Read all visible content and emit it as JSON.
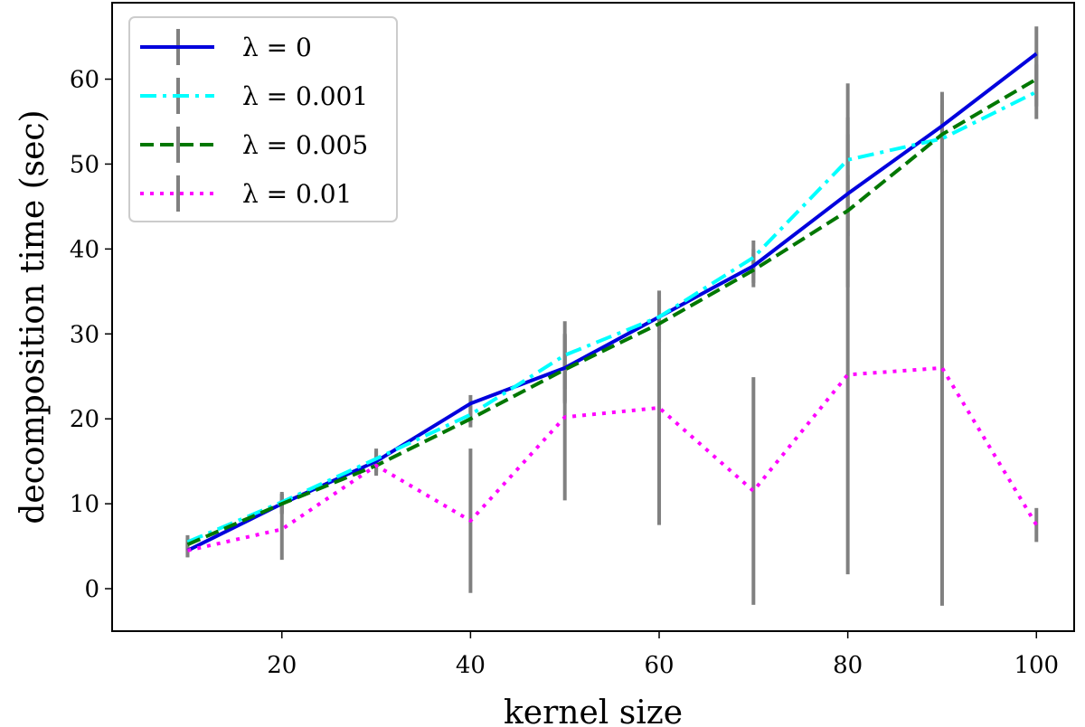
{
  "chart_data": {
    "type": "line",
    "xlabel": "kernel size",
    "ylabel": "decomposition time (sec)",
    "xlim": [
      2,
      104
    ],
    "ylim": [
      -5,
      69
    ],
    "xticks": [
      20,
      40,
      60,
      80,
      100
    ],
    "yticks": [
      0,
      10,
      20,
      30,
      40,
      50,
      60
    ],
    "x": [
      10,
      20,
      30,
      40,
      50,
      60,
      70,
      80,
      90,
      100
    ],
    "legend_position": "upper-left",
    "grid": false,
    "series": [
      {
        "name": "λ = 0",
        "color": "#0000dd",
        "linestyle": "solid",
        "values": [
          4.5,
          10.0,
          15.0,
          21.8,
          26.0,
          32.0,
          38.0,
          46.5,
          54.5,
          63.0
        ],
        "errors": [
          0.8,
          1.2,
          1.2,
          1.0,
          4.0,
          3.0,
          2.0,
          9.0,
          4.0,
          3.2
        ]
      },
      {
        "name": "λ = 0.001",
        "color": "#00ffff",
        "linestyle": "dashdot",
        "values": [
          5.5,
          10.2,
          15.3,
          20.5,
          27.5,
          32.0,
          39.0,
          50.5,
          53.0,
          58.5
        ],
        "errors": [
          0.8,
          1.2,
          1.2,
          1.0,
          4.0,
          3.0,
          2.0,
          9.0,
          4.0,
          3.2
        ]
      },
      {
        "name": "λ = 0.005",
        "color": "#007700",
        "linestyle": "dashed",
        "values": [
          5.2,
          10.0,
          14.5,
          20.0,
          25.8,
          31.2,
          37.5,
          44.5,
          53.5,
          60.0
        ],
        "errors": [
          0.8,
          1.2,
          1.2,
          1.0,
          4.0,
          3.0,
          2.0,
          9.0,
          4.0,
          3.2
        ]
      },
      {
        "name": "λ = 0.01",
        "color": "#ff00ff",
        "linestyle": "dotted",
        "values": [
          4.5,
          7.0,
          14.5,
          8.0,
          20.2,
          21.3,
          11.5,
          25.2,
          26.0,
          7.5
        ],
        "errors": [
          0.8,
          3.6,
          1.0,
          8.5,
          9.8,
          13.8,
          13.4,
          23.5,
          28.0,
          2.0
        ]
      }
    ]
  }
}
